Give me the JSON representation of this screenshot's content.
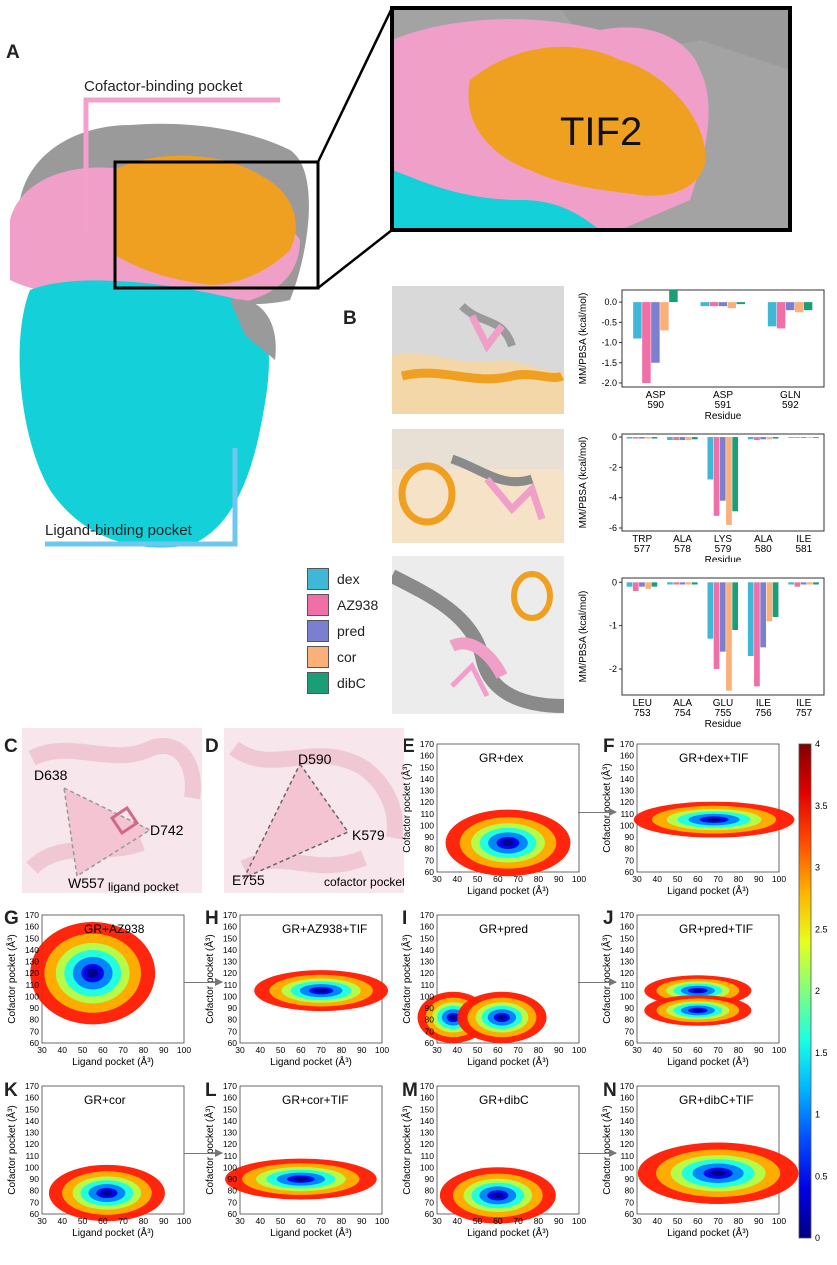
{
  "panels": {
    "A": "A",
    "B": "B",
    "C": "C",
    "D": "D",
    "E": "E",
    "F": "F",
    "G": "G",
    "H": "H",
    "I": "I",
    "J": "J",
    "K": "K",
    "L": "L",
    "M": "M",
    "N": "N"
  },
  "structure": {
    "cofactor_label": "Cofactor-binding pocket",
    "ligand_label": "Ligand-binding pocket",
    "tif2_label": "TIF2",
    "colors": {
      "cofactor": "#f0a0c8",
      "ligand": "#14d0d8",
      "tif2": "#f0a020",
      "gray": "#9a9a9a"
    }
  },
  "legend": [
    {
      "name": "dex",
      "color": "#3fb7d6"
    },
    {
      "name": "AZ938",
      "color": "#ef6fa6"
    },
    {
      "name": "pred",
      "color": "#7b7fd0"
    },
    {
      "name": "cor",
      "color": "#fbb07a"
    },
    {
      "name": "dibC",
      "color": "#1b9e77"
    }
  ],
  "pocket_c": {
    "labels": [
      "D638",
      "D742",
      "W557"
    ],
    "caption": "ligand pocket"
  },
  "pocket_d": {
    "labels": [
      "D590",
      "K579",
      "E755"
    ],
    "caption": "cofactor pocket"
  },
  "chart_data": [
    {
      "type": "bar",
      "ylabel": "MM/PBSA (kcal/mol)",
      "xlabel": "Residue",
      "categories": [
        "ASP 590",
        "ASP 591",
        "GLN 592"
      ],
      "ylim": [
        -2.1,
        0.3
      ],
      "yticks": [
        "0.0",
        "-0.5",
        "-1.0",
        "-1.5",
        "-2.0"
      ],
      "ytick_values": [
        0,
        -0.5,
        -1.0,
        -1.5,
        -2.0
      ],
      "series": [
        {
          "name": "dex",
          "values": [
            -0.9,
            -0.1,
            -0.6
          ]
        },
        {
          "name": "AZ938",
          "values": [
            -2.0,
            -0.1,
            -0.65
          ]
        },
        {
          "name": "pred",
          "values": [
            -1.5,
            -0.1,
            -0.2
          ]
        },
        {
          "name": "cor",
          "values": [
            -0.7,
            -0.15,
            -0.25
          ]
        },
        {
          "name": "dibC",
          "values": [
            0.3,
            -0.05,
            -0.2
          ]
        }
      ]
    },
    {
      "type": "bar",
      "ylabel": "MM/PBSA (kcal/mol)",
      "xlabel": "Residue",
      "categories": [
        "TRP 577",
        "ALA 578",
        "LYS 579",
        "ALA 580",
        "ILE 581"
      ],
      "ylim": [
        -6.2,
        0.2
      ],
      "yticks": [
        "0",
        "-2",
        "-4",
        "-6"
      ],
      "ytick_values": [
        0,
        -2,
        -4,
        -6
      ],
      "series": [
        {
          "name": "dex",
          "values": [
            -0.1,
            -0.2,
            -2.8,
            -0.15,
            -0.05
          ]
        },
        {
          "name": "AZ938",
          "values": [
            -0.1,
            -0.2,
            -5.2,
            -0.2,
            -0.05
          ]
        },
        {
          "name": "pred",
          "values": [
            -0.1,
            -0.2,
            -4.2,
            -0.15,
            -0.05
          ]
        },
        {
          "name": "cor",
          "values": [
            -0.1,
            -0.2,
            -5.8,
            -0.15,
            -0.05
          ]
        },
        {
          "name": "dibC",
          "values": [
            -0.1,
            -0.15,
            -4.9,
            -0.1,
            -0.05
          ]
        }
      ]
    },
    {
      "type": "bar",
      "ylabel": "MM/PBSA (kcal/mol)",
      "xlabel": "Residue",
      "categories": [
        "LEU 753",
        "ALA 754",
        "GLU 755",
        "ILE 756",
        "ILE 757"
      ],
      "ylim": [
        -2.6,
        0.1
      ],
      "yticks": [
        "0",
        "-1",
        "-2"
      ],
      "ytick_values": [
        0,
        -1,
        -2
      ],
      "series": [
        {
          "name": "dex",
          "values": [
            -0.1,
            -0.05,
            -1.3,
            -1.7,
            -0.05
          ]
        },
        {
          "name": "AZ938",
          "values": [
            -0.2,
            -0.05,
            -2.0,
            -2.4,
            -0.1
          ]
        },
        {
          "name": "pred",
          "values": [
            -0.1,
            -0.05,
            -1.6,
            -1.5,
            -0.05
          ]
        },
        {
          "name": "cor",
          "values": [
            -0.15,
            -0.05,
            -2.5,
            -0.9,
            -0.05
          ]
        },
        {
          "name": "dibC",
          "values": [
            -0.1,
            -0.05,
            -1.1,
            -0.8,
            -0.05
          ]
        }
      ]
    },
    {
      "type": "heatmap",
      "panels": [
        {
          "id": "E",
          "title": "GR+dex",
          "blobs": [
            [
              65,
              85,
              14,
              13
            ]
          ]
        },
        {
          "id": "F",
          "title": "GR+dex+TIF",
          "blobs": [
            [
              68,
              105,
              18,
              7
            ]
          ]
        },
        {
          "id": "G",
          "title": "GR+AZ938",
          "blobs": [
            [
              55,
              120,
              14,
              20
            ]
          ]
        },
        {
          "id": "H",
          "title": "GR+AZ938+TIF",
          "blobs": [
            [
              70,
              105,
              15,
              8
            ]
          ]
        },
        {
          "id": "I",
          "title": "GR+pred",
          "blobs": [
            [
              38,
              82,
              8,
              10
            ],
            [
              62,
              82,
              10,
              10
            ]
          ]
        },
        {
          "id": "J",
          "title": "GR+pred+TIF",
          "blobs": [
            [
              60,
              105,
              12,
              6
            ],
            [
              60,
              88,
              12,
              6
            ]
          ]
        },
        {
          "id": "K",
          "title": "GR+cor",
          "blobs": [
            [
              62,
              78,
              13,
              11
            ]
          ]
        },
        {
          "id": "L",
          "title": "GR+cor+TIF",
          "blobs": [
            [
              60,
              90,
              17,
              8
            ]
          ]
        },
        {
          "id": "M",
          "title": "GR+dibC",
          "blobs": [
            [
              60,
              76,
              13,
              11
            ]
          ]
        },
        {
          "id": "N",
          "title": "GR+dibC+TIF",
          "blobs": [
            [
              70,
              95,
              18,
              12
            ]
          ]
        }
      ],
      "xlabel": "Ligand pocket (Å³)",
      "ylabel": "Cofactor pocket (Å³)",
      "xlim": [
        30,
        100
      ],
      "ylim": [
        60,
        170
      ],
      "xticks": [
        "30",
        "40",
        "50",
        "60",
        "70",
        "80",
        "90",
        "100"
      ],
      "yticks": [
        "60",
        "70",
        "80",
        "90",
        "100",
        "110",
        "120",
        "130",
        "140",
        "150",
        "160",
        "170"
      ]
    },
    {
      "type": "colorbar",
      "ticks": [
        "0",
        "0.5",
        "1",
        "1.5",
        "2",
        "2.5",
        "3",
        "3.5",
        "4"
      ],
      "range": [
        0,
        4
      ]
    }
  ]
}
